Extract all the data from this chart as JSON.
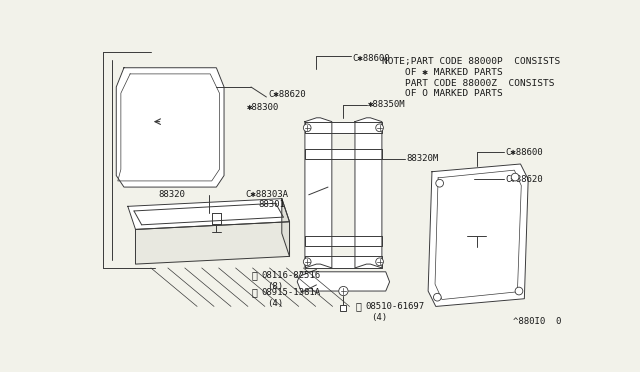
{
  "bg_color": "#f2f2ea",
  "line_color": "#3a3a3a",
  "text_color": "#1a1a1a",
  "note_lines": [
    "NOTE;PART CODE 88000P  CONSISTS",
    "    OF ✱ MARKED PARTS",
    "    PART CODE 88000Z  CONSISTS",
    "    OF O MARKED PARTS"
  ],
  "ref_text": "^880I0  0",
  "font_size_labels": 6.5,
  "font_size_note": 6.8
}
